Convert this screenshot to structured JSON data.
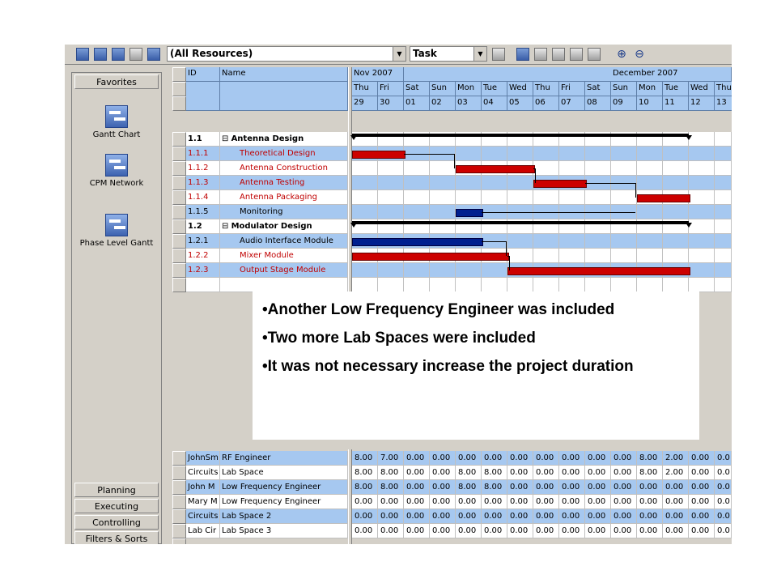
{
  "toolbar": {
    "resource_filter": "(All Resources)",
    "view_select": "Task"
  },
  "sidebar": {
    "header": "Favorites",
    "items": [
      {
        "label": "Gantt Chart",
        "icon": "gantt-chart-icon"
      },
      {
        "label": "CPM Network",
        "icon": "cpm-network-icon"
      },
      {
        "label": "Phase Level Gantt",
        "icon": "phase-gantt-icon"
      }
    ],
    "sections": [
      "Planning",
      "Executing",
      "Controlling",
      "Filters & Sorts"
    ]
  },
  "task_table": {
    "columns": [
      "ID",
      "Name"
    ],
    "rows": [
      {
        "id": "1.1",
        "name": "Antenna Design",
        "type": "summary"
      },
      {
        "id": "1.1.1",
        "name": "Theoretical Design",
        "type": "critical"
      },
      {
        "id": "1.1.2",
        "name": "Antenna Construction",
        "type": "critical"
      },
      {
        "id": "1.1.3",
        "name": "Antenna Testing",
        "type": "critical"
      },
      {
        "id": "1.1.4",
        "name": "Antenna Packaging",
        "type": "critical"
      },
      {
        "id": "1.1.5",
        "name": "Monitoring",
        "type": "normal"
      },
      {
        "id": "1.2",
        "name": "Modulator Design",
        "type": "summary"
      },
      {
        "id": "1.2.1",
        "name": "Audio Interface Module",
        "type": "normal"
      },
      {
        "id": "1.2.2",
        "name": "Mixer Module",
        "type": "critical"
      },
      {
        "id": "1.2.3",
        "name": "Output Stage Module",
        "type": "critical"
      }
    ]
  },
  "timeline": {
    "months": [
      {
        "label": "Nov 2007"
      },
      {
        "label": "December 2007"
      }
    ],
    "days": [
      {
        "dow": "Thu",
        "date": "29"
      },
      {
        "dow": "Fri",
        "date": "30"
      },
      {
        "dow": "Sat",
        "date": "01"
      },
      {
        "dow": "Sun",
        "date": "02"
      },
      {
        "dow": "Mon",
        "date": "03"
      },
      {
        "dow": "Tue",
        "date": "04"
      },
      {
        "dow": "Wed",
        "date": "05"
      },
      {
        "dow": "Thu",
        "date": "06"
      },
      {
        "dow": "Fri",
        "date": "07"
      },
      {
        "dow": "Sat",
        "date": "08"
      },
      {
        "dow": "Sun",
        "date": "09"
      },
      {
        "dow": "Mon",
        "date": "10"
      },
      {
        "dow": "Tue",
        "date": "11"
      },
      {
        "dow": "Wed",
        "date": "12"
      },
      {
        "dow": "Thu",
        "date": "13"
      }
    ],
    "bars": [
      {
        "row": 0,
        "start": 0,
        "end": 13,
        "kind": "summary"
      },
      {
        "row": 1,
        "start": 0,
        "end": 2,
        "kind": "red"
      },
      {
        "row": 2,
        "start": 4,
        "end": 7,
        "kind": "red"
      },
      {
        "row": 3,
        "start": 7,
        "end": 9,
        "kind": "red"
      },
      {
        "row": 4,
        "start": 11,
        "end": 13,
        "kind": "red"
      },
      {
        "row": 5,
        "start": 4,
        "end": 5,
        "kind": "blue"
      },
      {
        "row": 6,
        "start": 0,
        "end": 13,
        "kind": "summary"
      },
      {
        "row": 7,
        "start": 0,
        "end": 5,
        "kind": "blue"
      },
      {
        "row": 8,
        "start": 0,
        "end": 6,
        "kind": "red"
      },
      {
        "row": 9,
        "start": 6,
        "end": 13,
        "kind": "red"
      }
    ]
  },
  "notes": [
    "•Another Low Frequency Engineer was included",
    "•Two more Lab Spaces were included",
    "•It was not necessary increase the project duration"
  ],
  "resources": {
    "rows": [
      {
        "code": "JohnSm",
        "name": "RF Engineer",
        "values": [
          "8.00",
          "7.00",
          "0.00",
          "0.00",
          "0.00",
          "0.00",
          "0.00",
          "0.00",
          "0.00",
          "0.00",
          "0.00",
          "8.00",
          "2.00",
          "0.00",
          "0.0"
        ]
      },
      {
        "code": "Circuits",
        "name": "Lab Space",
        "values": [
          "8.00",
          "8.00",
          "0.00",
          "0.00",
          "8.00",
          "8.00",
          "0.00",
          "0.00",
          "0.00",
          "0.00",
          "0.00",
          "8.00",
          "2.00",
          "0.00",
          "0.0"
        ]
      },
      {
        "code": "John M",
        "name": "Low Frequency Engineer",
        "values": [
          "8.00",
          "8.00",
          "0.00",
          "0.00",
          "8.00",
          "8.00",
          "0.00",
          "0.00",
          "0.00",
          "0.00",
          "0.00",
          "0.00",
          "0.00",
          "0.00",
          "0.0"
        ]
      },
      {
        "code": "Mary M",
        "name": "Low Frequency Engineer",
        "values": [
          "0.00",
          "0.00",
          "0.00",
          "0.00",
          "0.00",
          "0.00",
          "0.00",
          "0.00",
          "0.00",
          "0.00",
          "0.00",
          "0.00",
          "0.00",
          "0.00",
          "0.0"
        ]
      },
      {
        "code": "Circuits",
        "name": "Lab Space 2",
        "values": [
          "0.00",
          "0.00",
          "0.00",
          "0.00",
          "0.00",
          "0.00",
          "0.00",
          "0.00",
          "0.00",
          "0.00",
          "0.00",
          "0.00",
          "0.00",
          "0.00",
          "0.0"
        ]
      },
      {
        "code": "Lab Cir",
        "name": "Lab Space 3",
        "values": [
          "0.00",
          "0.00",
          "0.00",
          "0.00",
          "0.00",
          "0.00",
          "0.00",
          "0.00",
          "0.00",
          "0.00",
          "0.00",
          "0.00",
          "0.00",
          "0.00",
          "0.0"
        ]
      }
    ]
  }
}
